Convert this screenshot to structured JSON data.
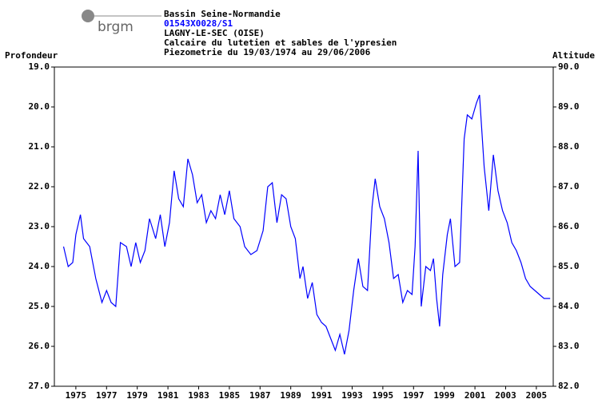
{
  "logo": "brgm",
  "chart_data": {
    "type": "line",
    "header": [
      "Bassin Seine-Normandie",
      "01543X0028/S1",
      "LAGNY-LE-SEC (OISE)",
      "Calcaire du lutetien et sables de l'ypresien",
      "Piezometrie du 19/03/1974 au 29/06/2006"
    ],
    "ylabel": "Profondeur",
    "y2label": "Altitude",
    "xlim": [
      1973.6,
      2006.1
    ],
    "xticks": [
      1975,
      1977,
      1979,
      1981,
      1983,
      1985,
      1987,
      1989,
      1991,
      1993,
      1995,
      1997,
      1999,
      2001,
      2003,
      2005
    ],
    "ylim": [
      27,
      19
    ],
    "yticks": [
      {
        "value": 19,
        "label": "19.0"
      },
      {
        "value": 20,
        "label": "20.0"
      },
      {
        "value": 21,
        "label": "21.0"
      },
      {
        "value": 22,
        "label": "22.0"
      },
      {
        "value": 23,
        "label": "23.0"
      },
      {
        "value": 24,
        "label": "24.0"
      },
      {
        "value": 25,
        "label": "25.0"
      },
      {
        "value": 26,
        "label": "26.0"
      },
      {
        "value": 27,
        "label": "27.0"
      }
    ],
    "y2lim": [
      82,
      90
    ],
    "y2ticks": [
      {
        "value": 90,
        "label": "90.0"
      },
      {
        "value": 89,
        "label": "89.0"
      },
      {
        "value": 88,
        "label": "88.0"
      },
      {
        "value": 87,
        "label": "87.0"
      },
      {
        "value": 86,
        "label": "86.0"
      },
      {
        "value": 85,
        "label": "85.0"
      },
      {
        "value": 84,
        "label": "84.0"
      },
      {
        "value": 83,
        "label": "83.0"
      },
      {
        "value": 82,
        "label": "82.0"
      }
    ],
    "series": [
      {
        "color": "#0000ff",
        "x": [
          1974.2,
          1974.5,
          1974.8,
          1975.0,
          1975.3,
          1975.5,
          1975.9,
          1976.3,
          1976.7,
          1977.0,
          1977.3,
          1977.6,
          1977.9,
          1978.3,
          1978.6,
          1978.9,
          1979.2,
          1979.5,
          1979.8,
          1980.2,
          1980.5,
          1980.8,
          1981.1,
          1981.4,
          1981.7,
          1982.0,
          1982.3,
          1982.6,
          1982.9,
          1983.2,
          1983.5,
          1983.8,
          1984.1,
          1984.4,
          1984.7,
          1985.0,
          1985.3,
          1985.7,
          1986.0,
          1986.4,
          1986.8,
          1987.2,
          1987.5,
          1987.8,
          1988.1,
          1988.4,
          1988.7,
          1989.0,
          1989.3,
          1989.6,
          1989.8,
          1990.1,
          1990.4,
          1990.7,
          1991.0,
          1991.3,
          1991.6,
          1991.9,
          1992.2,
          1992.5,
          1992.8,
          1993.1,
          1993.4,
          1993.7,
          1994.0,
          1994.3,
          1994.5,
          1994.8,
          1995.1,
          1995.4,
          1995.7,
          1996.0,
          1996.3,
          1996.6,
          1996.9,
          1997.1,
          1997.3,
          1997.5,
          1997.8,
          1998.1,
          1998.3,
          1998.5,
          1998.7,
          1998.9,
          1999.2,
          1999.4,
          1999.7,
          2000.0,
          2000.3,
          2000.5,
          2000.8,
          2001.1,
          2001.3,
          2001.6,
          2001.9,
          2002.2,
          2002.5,
          2002.8,
          2003.1,
          2003.4,
          2003.7,
          2004.0,
          2004.3,
          2004.6,
          2004.9,
          2005.2,
          2005.5,
          2005.9
        ],
        "values": [
          23.5,
          24.0,
          23.9,
          23.2,
          22.7,
          23.3,
          23.5,
          24.3,
          24.9,
          24.6,
          24.9,
          25.0,
          23.4,
          23.5,
          24.0,
          23.4,
          23.9,
          23.6,
          22.8,
          23.3,
          22.7,
          23.5,
          22.9,
          21.6,
          22.3,
          22.5,
          21.3,
          21.7,
          22.4,
          22.2,
          22.9,
          22.6,
          22.8,
          22.2,
          22.7,
          22.1,
          22.8,
          23.0,
          23.5,
          23.7,
          23.6,
          23.1,
          22.0,
          21.9,
          22.9,
          22.2,
          22.3,
          23.0,
          23.3,
          24.3,
          24.0,
          24.8,
          24.4,
          25.2,
          25.4,
          25.5,
          25.8,
          26.1,
          25.7,
          26.2,
          25.6,
          24.6,
          23.8,
          24.5,
          24.6,
          22.5,
          21.8,
          22.5,
          22.8,
          23.4,
          24.3,
          24.2,
          24.9,
          24.6,
          24.7,
          23.5,
          21.1,
          25.0,
          24.0,
          24.1,
          23.8,
          24.8,
          25.5,
          24.2,
          23.2,
          22.8,
          24.0,
          23.9,
          20.8,
          20.2,
          20.3,
          19.9,
          19.7,
          21.5,
          22.6,
          21.2,
          22.1,
          22.6,
          22.9,
          23.4,
          23.6,
          23.9,
          24.3,
          24.5,
          24.6,
          24.7,
          24.8,
          24.8
        ]
      }
    ]
  }
}
